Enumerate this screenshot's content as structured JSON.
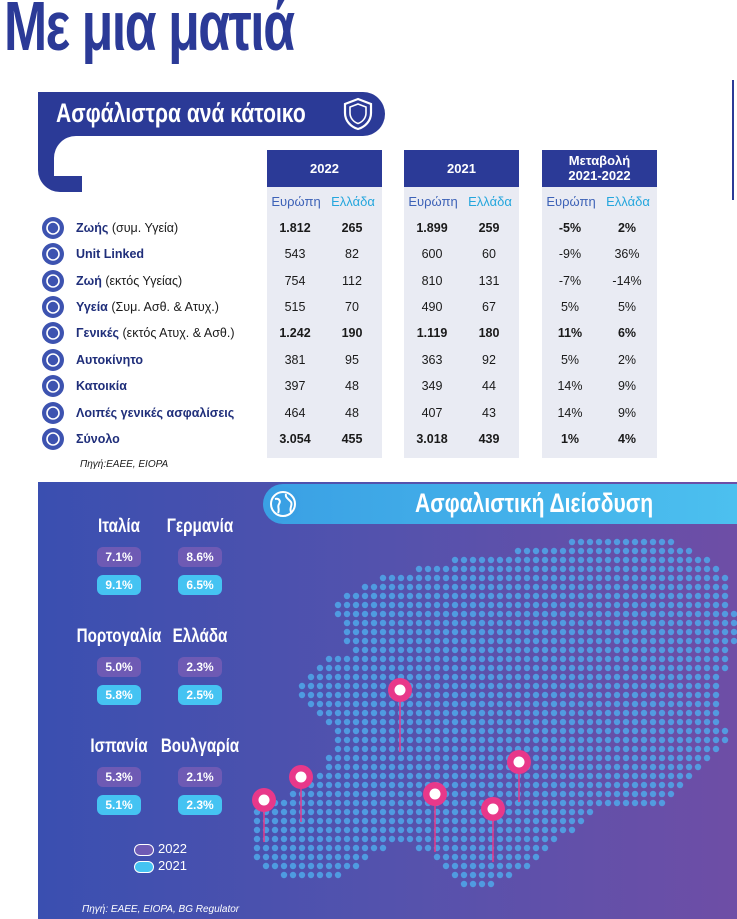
{
  "header": {
    "title": "Με μια ματιά"
  },
  "section1": {
    "title": "Ασφάλιστρα ανά κάτοικο"
  },
  "table": {
    "groups": [
      {
        "label": "2022",
        "sub": [
          "Ευρώπη",
          "Ελλάδα"
        ]
      },
      {
        "label": "2021",
        "sub": [
          "Ευρώπη",
          "Ελλάδα"
        ]
      },
      {
        "label_line1": "Μεταβολή",
        "label_line2": "2021-2022",
        "sub": [
          "Ευρώπη",
          "Ελλάδα"
        ]
      }
    ],
    "rows": [
      {
        "bold": "Ζωής",
        "rest": " (συμ. Υγεία)",
        "v": [
          "1.812",
          "265",
          "1.899",
          "259",
          "-5%",
          "2%"
        ],
        "strong": true
      },
      {
        "bold": "Unit Linked",
        "rest": "",
        "v": [
          "543",
          "82",
          "600",
          "60",
          "-9%",
          "36%"
        ],
        "strong": false
      },
      {
        "bold": "Ζωή",
        "rest": " (εκτός Υγείας)",
        "v": [
          "754",
          "112",
          "810",
          "131",
          "-7%",
          "-14%"
        ],
        "strong": false
      },
      {
        "bold": "Υγεία",
        "rest": " (Συμ. Ασθ. & Ατυχ.)",
        "v": [
          "515",
          "70",
          "490",
          "67",
          "5%",
          "5%"
        ],
        "strong": false
      },
      {
        "bold": "Γενικές",
        "rest": " (εκτός Ατυχ. & Ασθ.)",
        "v": [
          "1.242",
          "190",
          "1.119",
          "180",
          "11%",
          "6%"
        ],
        "strong": true
      },
      {
        "bold": "Αυτοκίνητο",
        "rest": "",
        "v": [
          "381",
          "95",
          "363",
          "92",
          "5%",
          "2%"
        ],
        "strong": false
      },
      {
        "bold": "Κατοικία",
        "rest": "",
        "v": [
          "397",
          "48",
          "349",
          "44",
          "14%",
          "9%"
        ],
        "strong": false
      },
      {
        "bold": "Λοιπές γενικές ασφαλίσεις",
        "rest": "",
        "v": [
          "464",
          "48",
          "407",
          "43",
          "14%",
          "9%"
        ],
        "strong": false
      },
      {
        "bold": "Σύνολο",
        "rest": "",
        "v": [
          "3.054",
          "455",
          "3.018",
          "439",
          "1%",
          "4%"
        ],
        "strong": true
      }
    ],
    "source": "Πηγή:ΕΑΕΕ, EIOPA"
  },
  "section2": {
    "title": "Ασφαλιστική Διείσδυση"
  },
  "countries": [
    {
      "name": "Ιταλία",
      "v2022": "7.1%",
      "v2021": "9.1%"
    },
    {
      "name": "Γερμανία",
      "v2022": "8.6%",
      "v2021": "6.5%"
    },
    {
      "name": "Πορτογαλία",
      "v2022": "5.0%",
      "v2021": "5.8%"
    },
    {
      "name": "Ελλάδα",
      "v2022": "2.3%",
      "v2021": "2.5%"
    },
    {
      "name": "Ισπανία",
      "v2022": "5.3%",
      "v2021": "5.1%"
    },
    {
      "name": "Βουλγαρία",
      "v2022": "2.1%",
      "v2021": "2.3%"
    }
  ],
  "legend": {
    "y2022": "2022",
    "y2021": "2021"
  },
  "source2": "Πηγή: ΕΑΕΕ, EIOPA, BG Regulator",
  "colors": {
    "navy": "#2b3a97",
    "cyan": "#45c3f2",
    "purple": "#6e5ab4",
    "pin": "#e8388a"
  },
  "icons": [
    "umbrella-icon",
    "dollar-icon",
    "heart-hands-icon",
    "shield-plus-icon",
    "umbrella-icon",
    "car-icon",
    "house-icon",
    "shield-icon",
    "shield-check-icon",
    "globe-icon"
  ]
}
